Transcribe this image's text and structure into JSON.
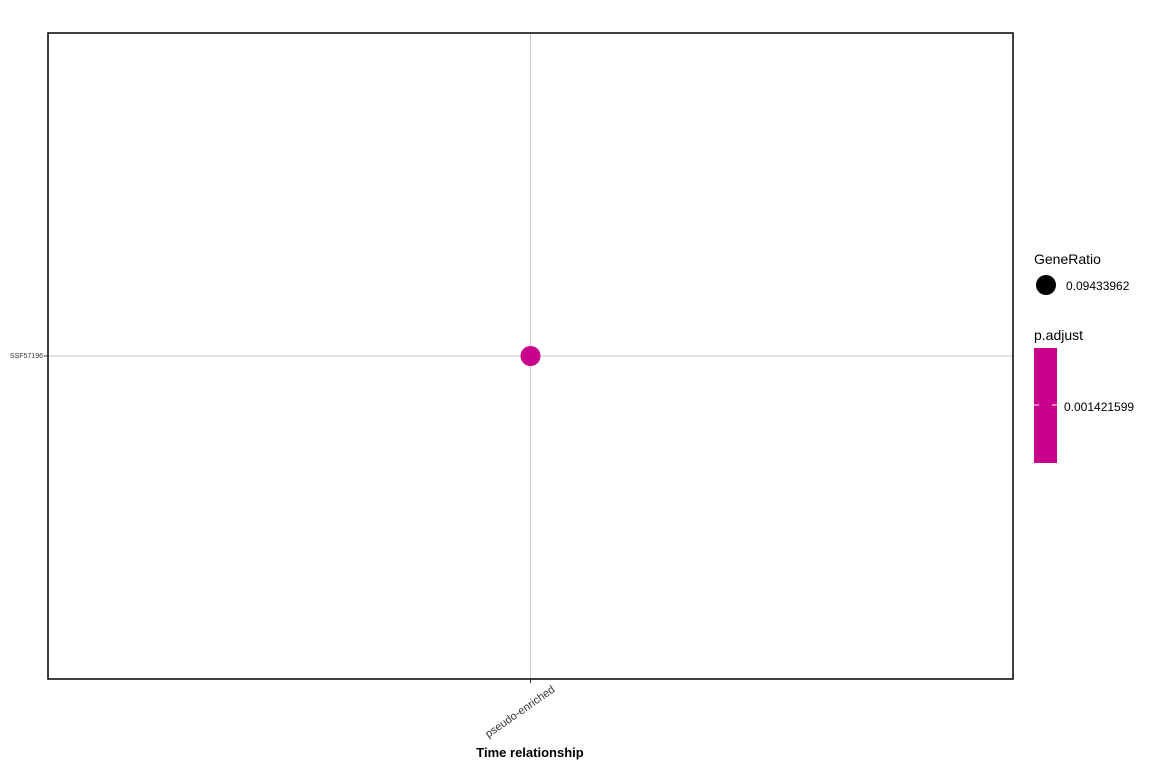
{
  "chart_data": {
    "type": "scatter",
    "title": "",
    "xlabel": "Time relationship",
    "ylabel": "",
    "categories_x": [
      "pseudo-enriched"
    ],
    "categories_y": [
      "SSF57196"
    ],
    "points": [
      {
        "x": "pseudo-enriched",
        "y": "SSF57196",
        "GeneRatio": 0.09433962,
        "p_adjust": 0.001421599
      }
    ],
    "grid": true,
    "legend_placement": "right",
    "legend": {
      "size_title": "GeneRatio",
      "size_label": "0.09433962",
      "color_title": "p.adjust",
      "color_label": "0.001421599"
    },
    "colors": {
      "point": "#C8008C",
      "colorbar": "#C8008C",
      "gridline": "#C8C8C8",
      "size_key": "#000000"
    }
  }
}
